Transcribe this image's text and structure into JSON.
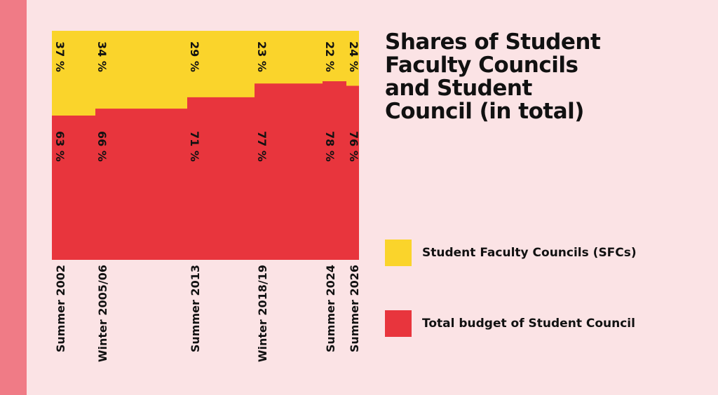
{
  "chart_data": {
    "type": "area",
    "title": "Shares of Student Faculty Councils and Student Council (in total)",
    "categories": [
      "Summer 2002",
      "Winter 2005/06",
      "Summer 2013",
      "Winter 2018/19",
      "Summer 2024",
      "Summer 2026"
    ],
    "series": [
      {
        "name": "Student Faculty Councils (SFCs)",
        "values": [
          37,
          34,
          29,
          23,
          22,
          24
        ],
        "labels": [
          "37 %",
          "34 %",
          "29 %",
          "23 %",
          "22 %",
          "24 %"
        ],
        "color": "#fad42b"
      },
      {
        "name": "Total budget of Student Council",
        "values": [
          63,
          66,
          71,
          77,
          78,
          76
        ],
        "labels": [
          "63 %",
          "66 %",
          "71 %",
          "77 %",
          "78 %",
          "76 %"
        ],
        "color": "#e8353d"
      }
    ],
    "ylim": [
      0,
      100
    ],
    "stacked": true,
    "legend_position": "right",
    "grid": false
  },
  "colors": {
    "background": "#fbe3e5",
    "side_bar": "#f07b86",
    "sfc": "#fad42b",
    "council": "#e8353d"
  }
}
